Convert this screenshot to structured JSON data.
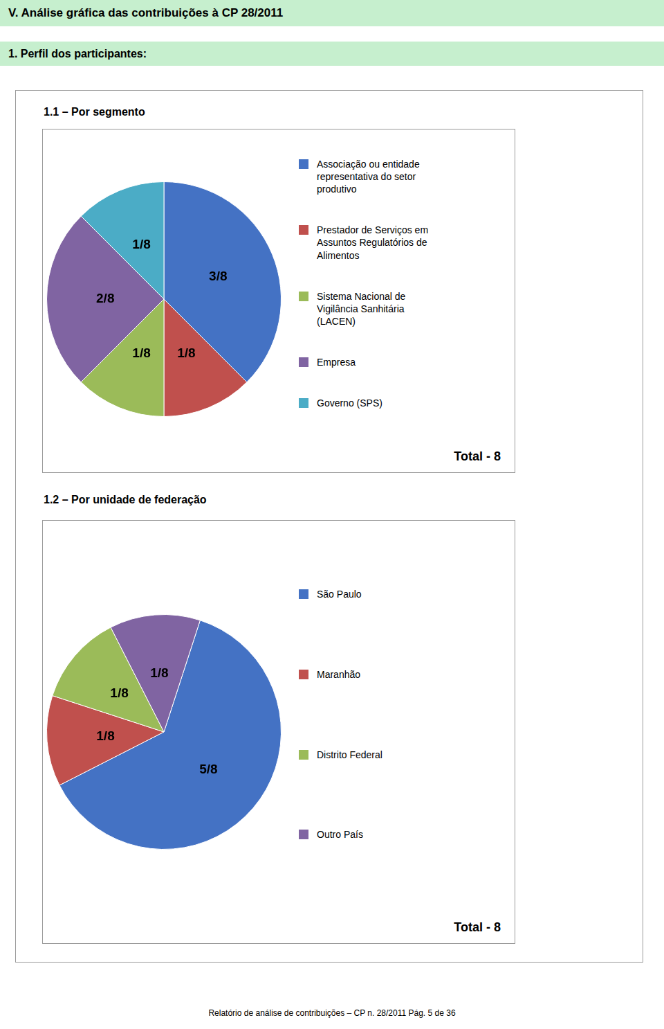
{
  "title": "V. Análise gráfica das contribuições à CP 28/2011",
  "subtitle": "1. Perfil dos participantes:",
  "annotations": [
    "Relatório de análise de contribuições – CP n. 28/2011     Pág. 5 de 36"
  ],
  "chart_data": [
    {
      "type": "pie",
      "title": "1.1 – Por segmento",
      "categories": [
        "Associação ou entidade\nrepresentativa do setor\nprodutivo",
        "Prestador de Serviços em\nAssuntos Regulatórios de\nAlimentos",
        "Sistema Nacional de\nVigilância Sanhitária\n(LACEN)",
        "Empresa",
        "Governo (SPS)"
      ],
      "values": [
        3,
        1,
        1,
        2,
        1
      ],
      "value_labels": [
        "3/8",
        "1/8",
        "1/8",
        "2/8",
        "1/8"
      ],
      "data_labels": true,
      "colors": [
        "#4472C4",
        "#C0504D",
        "#9BBB59",
        "#8064A2",
        "#4BACC6"
      ],
      "legend": "right",
      "annotations": [
        "Total - 8"
      ]
    },
    {
      "type": "pie",
      "title": "1.2 – Por unidade de federação",
      "categories": [
        "São Paulo",
        "Maranhão",
        "Distrito Federal",
        "Outro País"
      ],
      "values": [
        5,
        1,
        1,
        1
      ],
      "value_labels": [
        "5/8",
        "1/8",
        "1/8",
        "1/8"
      ],
      "data_labels": true,
      "colors": [
        "#4472C4",
        "#C0504D",
        "#9BBB59",
        "#8064A2"
      ],
      "legend": "right",
      "annotations": [
        "Total - 8"
      ]
    }
  ]
}
